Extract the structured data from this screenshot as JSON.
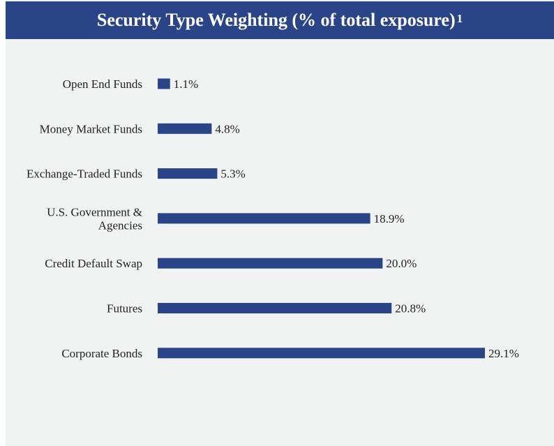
{
  "header": {
    "title": "Security Type Weighting (% of total exposure)",
    "footnote_marker": "1"
  },
  "colors": {
    "header_bg": "#2a4488",
    "bar": "#2a4488",
    "panel_bg": "#f1f2f2"
  },
  "chart_data": {
    "type": "bar",
    "orientation": "horizontal",
    "title": "Security Type Weighting (% of total exposure)",
    "categories": [
      [
        "Open End Funds"
      ],
      [
        "Money Market Funds"
      ],
      [
        "Exchange-Traded Funds"
      ],
      [
        "U.S. Government &",
        "Agencies"
      ],
      [
        "Credit Default Swap"
      ],
      [
        "Futures"
      ],
      [
        "Corporate Bonds"
      ]
    ],
    "values": [
      1.1,
      4.8,
      5.3,
      18.9,
      20.0,
      20.8,
      29.1
    ],
    "value_labels": [
      "1.1%",
      "4.8%",
      "5.3%",
      "18.9%",
      "20.0%",
      "20.8%",
      "29.1%"
    ],
    "xlim": [
      0,
      29.1
    ],
    "grid": false,
    "legend": "none"
  }
}
